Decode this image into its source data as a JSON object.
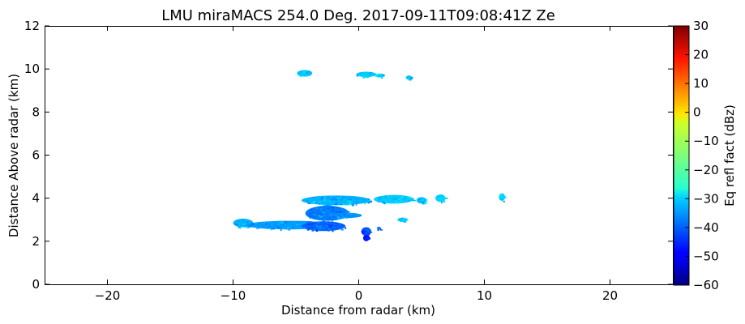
{
  "chart_data": {
    "type": "heatmap",
    "title": "LMU miraMACS 254.0 Deg. 2017-09-11T09:08:41Z  Ze",
    "xlabel": "Distance from radar (km)",
    "ylabel": "Distance Above radar  (km)",
    "xlim": [
      -25,
      25
    ],
    "ylim": [
      0,
      12
    ],
    "x_ticks": [
      -20,
      -10,
      0,
      10,
      20
    ],
    "x_tick_labels": [
      "−20",
      "−10",
      "0",
      "10",
      "20"
    ],
    "y_ticks": [
      0,
      2,
      4,
      6,
      8,
      10,
      12
    ],
    "y_tick_labels": [
      "0",
      "2",
      "4",
      "6",
      "8",
      "10",
      "12"
    ],
    "grid": false,
    "colorbar": {
      "label": "Eq refl fact (dBz)",
      "range": [
        -60,
        30
      ],
      "ticks": [
        -60,
        -50,
        -40,
        -30,
        -20,
        -10,
        0,
        10,
        20,
        30
      ],
      "tick_labels": [
        "−60",
        "−50",
        "−40",
        "−30",
        "−20",
        "−10",
        "0",
        "10",
        "20",
        "30"
      ],
      "colormap": "jet"
    },
    "echo_regions": [
      {
        "x_center": -4.3,
        "y_center": 9.8,
        "x_extent": 1.2,
        "y_extent": 0.3,
        "dbz": -32
      },
      {
        "x_center": 0.6,
        "y_center": 9.75,
        "x_extent": 1.6,
        "y_extent": 0.25,
        "dbz": -31
      },
      {
        "x_center": 1.7,
        "y_center": 9.7,
        "x_extent": 0.8,
        "y_extent": 0.18,
        "dbz": -30
      },
      {
        "x_center": 4.0,
        "y_center": 9.6,
        "x_extent": 0.5,
        "y_extent": 0.2,
        "dbz": -31
      },
      {
        "x_center": -1.8,
        "y_center": 3.9,
        "x_extent": 5.5,
        "y_extent": 0.45,
        "dbz": -33
      },
      {
        "x_center": 2.8,
        "y_center": 3.95,
        "x_extent": 3.2,
        "y_extent": 0.4,
        "dbz": -31
      },
      {
        "x_center": 5.0,
        "y_center": 3.9,
        "x_extent": 0.8,
        "y_extent": 0.3,
        "dbz": -32
      },
      {
        "x_center": 6.5,
        "y_center": 4.0,
        "x_extent": 0.8,
        "y_extent": 0.35,
        "dbz": -30
      },
      {
        "x_center": 11.4,
        "y_center": 4.05,
        "x_extent": 0.5,
        "y_extent": 0.35,
        "dbz": -30
      },
      {
        "x_center": -2.5,
        "y_center": 3.3,
        "x_extent": 3.5,
        "y_extent": 0.7,
        "dbz": -38
      },
      {
        "x_center": -1.0,
        "y_center": 3.2,
        "x_extent": 2.5,
        "y_extent": 0.25,
        "dbz": -36
      },
      {
        "x_center": -9.2,
        "y_center": 2.85,
        "x_extent": 1.6,
        "y_extent": 0.4,
        "dbz": -33
      },
      {
        "x_center": -5.5,
        "y_center": 2.75,
        "x_extent": 7.0,
        "y_extent": 0.4,
        "dbz": -35
      },
      {
        "x_center": -2.8,
        "y_center": 2.7,
        "x_extent": 3.5,
        "y_extent": 0.45,
        "dbz": -40
      },
      {
        "x_center": 0.6,
        "y_center": 2.45,
        "x_extent": 0.8,
        "y_extent": 0.4,
        "dbz": -42
      },
      {
        "x_center": 0.6,
        "y_center": 2.15,
        "x_extent": 0.5,
        "y_extent": 0.3,
        "dbz": -47
      },
      {
        "x_center": 3.5,
        "y_center": 3.0,
        "x_extent": 0.8,
        "y_extent": 0.2,
        "dbz": -32
      },
      {
        "x_center": 1.6,
        "y_center": 2.6,
        "x_extent": 0.3,
        "y_extent": 0.15,
        "dbz": -40
      }
    ]
  }
}
